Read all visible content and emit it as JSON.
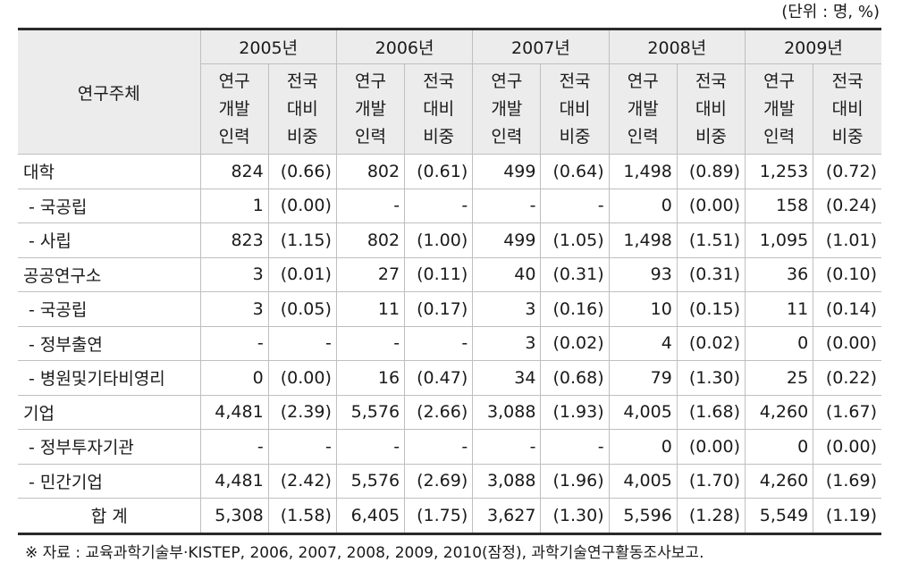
{
  "unit_note": "(단위 : 명, %)",
  "header": {
    "row_label": "연구주체",
    "years": [
      "2005년",
      "2006년",
      "2007년",
      "2008년",
      "2009년"
    ],
    "sub_staff": [
      "연구",
      "개발",
      "인력"
    ],
    "sub_ratio": [
      "전국",
      "대비",
      "비중"
    ]
  },
  "rows": [
    {
      "label": "대학",
      "values": [
        "824",
        "(0.66)",
        "802",
        "(0.61)",
        "499",
        "(0.64)",
        "1,498",
        "(0.89)",
        "1,253",
        "(0.72)"
      ]
    },
    {
      "label": " - 국공립",
      "values": [
        "1",
        "(0.00)",
        "-",
        "-",
        "-",
        "-",
        "0",
        "(0.00)",
        "158",
        "(0.24)"
      ]
    },
    {
      "label": " - 사립",
      "values": [
        "823",
        "(1.15)",
        "802",
        "(1.00)",
        "499",
        "(1.05)",
        "1,498",
        "(1.51)",
        "1,095",
        "(1.01)"
      ]
    },
    {
      "label": "공공연구소",
      "values": [
        "3",
        "(0.01)",
        "27",
        "(0.11)",
        "40",
        "(0.31)",
        "93",
        "(0.31)",
        "36",
        "(0.10)"
      ]
    },
    {
      "label": " - 국공립",
      "values": [
        "3",
        "(0.05)",
        "11",
        "(0.17)",
        "3",
        "(0.16)",
        "10",
        "(0.15)",
        "11",
        "(0.14)"
      ]
    },
    {
      "label": " - 정부출연",
      "values": [
        "-",
        "-",
        "-",
        "-",
        "3",
        "(0.02)",
        "4",
        "(0.02)",
        "0",
        "(0.00)"
      ]
    },
    {
      "label": " - 병원및기타비영리",
      "values": [
        "0",
        "(0.00)",
        "16",
        "(0.47)",
        "34",
        "(0.68)",
        "79",
        "(1.30)",
        "25",
        "(0.22)"
      ]
    },
    {
      "label": "기업",
      "values": [
        "4,481",
        "(2.39)",
        "5,576",
        "(2.66)",
        "3,088",
        "(1.93)",
        "4,005",
        "(1.68)",
        "4,260",
        "(1.67)"
      ]
    },
    {
      "label": " - 정부투자기관",
      "values": [
        "-",
        "-",
        "-",
        "-",
        "-",
        "-",
        "0",
        "(0.00)",
        "0",
        "(0.00)"
      ]
    },
    {
      "label": " - 민간기업",
      "values": [
        "4,481",
        "(2.42)",
        "5,576",
        "(2.69)",
        "3,088",
        "(1.96)",
        "4,005",
        "(1.70)",
        "4,260",
        "(1.69)"
      ]
    },
    {
      "label": "합 계",
      "values": [
        "5,308",
        "(1.58)",
        "6,405",
        "(1.75)",
        "3,627",
        "(1.30)",
        "5,596",
        "(1.28)",
        "5,549",
        "(1.19)"
      ]
    }
  ],
  "source_note": "※ 자료 : 교육과학기술부·KISTEP, 2006, 2007, 2008, 2009, 2010(잠정), 과학기술연구활동조사보고."
}
